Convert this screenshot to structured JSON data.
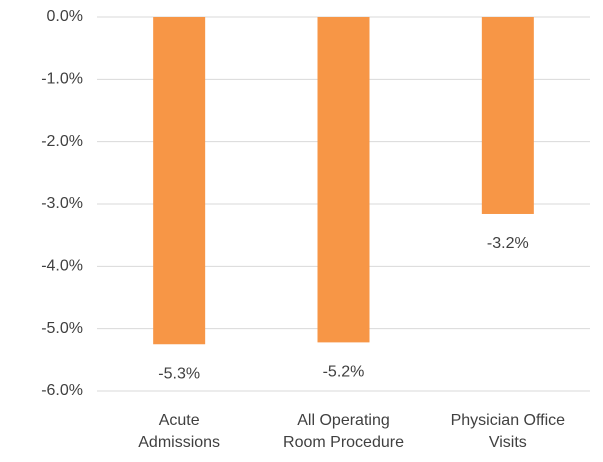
{
  "chart_data": {
    "type": "bar",
    "categories": [
      "Acute\nAdmissions",
      "All Operating\nRoom Procedure",
      "Physician Office\nVisits"
    ],
    "values": [
      -5.25,
      -5.22,
      -3.16
    ],
    "value_labels": [
      "-5.3%",
      "-5.2%",
      "-3.2%"
    ],
    "color": "#f79646",
    "ylim": [
      -6,
      0
    ],
    "yticks": [
      {
        "value": 0,
        "label": "0.0%"
      },
      {
        "value": -1,
        "label": "-1.0%"
      },
      {
        "value": -2,
        "label": "-2.0%"
      },
      {
        "value": -3,
        "label": "-3.0%"
      },
      {
        "value": -4,
        "label": "-4.0%"
      },
      {
        "value": -5,
        "label": "-5.0%"
      },
      {
        "value": -6,
        "label": "-6.0%"
      }
    ],
    "grid": true
  }
}
